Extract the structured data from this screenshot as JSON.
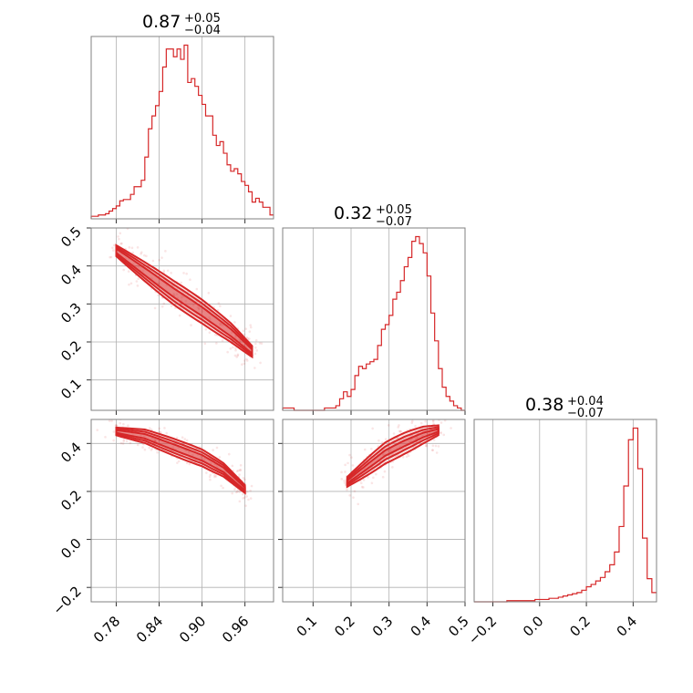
{
  "chart_data": {
    "type": "corner",
    "color": "#d62728",
    "parameters": [
      {
        "title": {
          "median": "0.87",
          "plus": "+0.05",
          "minus": "−0.04"
        },
        "range": [
          0.745,
          1.0
        ],
        "ticks": [
          "0.78",
          "0.84",
          "0.90",
          "0.96"
        ],
        "histogram": {
          "x": [
            0.745,
            0.75,
            0.755,
            0.76,
            0.765,
            0.77,
            0.775,
            0.78,
            0.785,
            0.79,
            0.795,
            0.8,
            0.805,
            0.81,
            0.815,
            0.82,
            0.825,
            0.83,
            0.835,
            0.84,
            0.845,
            0.85,
            0.855,
            0.86,
            0.865,
            0.87,
            0.875,
            0.88,
            0.885,
            0.89,
            0.895,
            0.9,
            0.905,
            0.91,
            0.915,
            0.92,
            0.925,
            0.93,
            0.935,
            0.94,
            0.945,
            0.95,
            0.955,
            0.96,
            0.965,
            0.97,
            0.975,
            0.98,
            0.985,
            0.99,
            0.995
          ],
          "counts": [
            2,
            2,
            3,
            3,
            4,
            6,
            8,
            10,
            14,
            15,
            15,
            19,
            25,
            25,
            30,
            48,
            70,
            80,
            88,
            99,
            118,
            132,
            132,
            126,
            132,
            124,
            135,
            106,
            109,
            103,
            96,
            89,
            80,
            80,
            65,
            57,
            60,
            51,
            42,
            37,
            39,
            35,
            29,
            26,
            21,
            13,
            16,
            13,
            9,
            9,
            3
          ]
        }
      },
      {
        "title": {
          "median": "0.32",
          "plus": "+0.05",
          "minus": "−0.07"
        },
        "range": [
          0.02,
          0.5
        ],
        "ticks": [
          "0.1",
          "0.2",
          "0.3",
          "0.4",
          "0.5"
        ],
        "histogram": {
          "x": [
            0.02,
            0.03,
            0.04,
            0.05,
            0.06,
            0.07,
            0.08,
            0.09,
            0.1,
            0.11,
            0.12,
            0.13,
            0.14,
            0.15,
            0.16,
            0.17,
            0.18,
            0.19,
            0.2,
            0.21,
            0.22,
            0.23,
            0.24,
            0.25,
            0.26,
            0.27,
            0.28,
            0.29,
            0.3,
            0.31,
            0.32,
            0.33,
            0.34,
            0.35,
            0.36,
            0.37,
            0.38,
            0.39,
            0.4,
            0.41,
            0.42,
            0.43,
            0.44,
            0.45,
            0.46,
            0.47,
            0.48,
            0.49
          ],
          "counts": [
            1,
            1,
            1,
            0,
            0,
            0,
            0,
            0,
            0,
            0,
            0,
            1,
            1,
            1,
            2,
            5,
            8,
            6,
            9,
            15,
            19,
            18,
            20,
            21,
            22,
            28,
            35,
            37,
            41,
            48,
            51,
            56,
            62,
            66,
            73,
            75,
            72,
            68,
            58,
            42,
            30,
            18,
            10,
            6,
            4,
            2,
            1,
            0
          ]
        }
      },
      {
        "title": {
          "median": "0.38",
          "plus": "+0.04",
          "minus": "−0.07"
        },
        "range": [
          -0.28,
          0.5
        ],
        "ticks": [
          "−0.2",
          "0.0",
          "0.2",
          "0.4"
        ],
        "histogram": {
          "x": [
            -0.28,
            -0.26,
            -0.24,
            -0.22,
            -0.2,
            -0.18,
            -0.16,
            -0.14,
            -0.12,
            -0.1,
            -0.08,
            -0.06,
            -0.04,
            -0.02,
            0.0,
            0.02,
            0.04,
            0.06,
            0.08,
            0.1,
            0.12,
            0.14,
            0.16,
            0.18,
            0.2,
            0.22,
            0.24,
            0.26,
            0.28,
            0.3,
            0.32,
            0.34,
            0.36,
            0.38,
            0.4,
            0.42,
            0.44,
            0.46,
            0.48
          ],
          "counts": [
            0,
            0,
            0,
            0,
            0,
            0,
            0,
            1,
            1,
            1,
            1,
            1,
            1,
            2,
            2,
            2,
            3,
            3,
            4,
            5,
            6,
            7,
            8,
            10,
            13,
            15,
            18,
            21,
            26,
            32,
            43,
            65,
            100,
            140,
            150,
            115,
            55,
            20,
            8
          ]
        }
      }
    ],
    "pairs": [
      {
        "x_param": 0,
        "y_param": 1,
        "y_range": [
          0.02,
          0.5
        ],
        "y_ticks": [
          "0.1",
          "0.2",
          "0.3",
          "0.4",
          "0.5"
        ],
        "centerline": [
          [
            0.78,
            0.44
          ],
          [
            0.82,
            0.385
          ],
          [
            0.86,
            0.33
          ],
          [
            0.9,
            0.28
          ],
          [
            0.94,
            0.225
          ],
          [
            0.97,
            0.175
          ]
        ],
        "widths": [
          0.012,
          0.022,
          0.032
        ],
        "spread_x": 0.055
      },
      {
        "x_param": 0,
        "y_param": 2,
        "y_range": [
          -0.26,
          0.5
        ],
        "y_ticks": [
          "−0.2",
          "0.0",
          "0.2",
          "0.4"
        ],
        "centerline": [
          [
            0.78,
            0.45
          ],
          [
            0.82,
            0.43
          ],
          [
            0.86,
            0.385
          ],
          [
            0.9,
            0.34
          ],
          [
            0.93,
            0.29
          ],
          [
            0.96,
            0.21
          ]
        ],
        "widths": [
          0.012,
          0.024,
          0.036
        ],
        "spread_x": 0.055
      },
      {
        "x_param": 1,
        "y_param": 2,
        "y_range": [
          -0.26,
          0.5
        ],
        "y_ticks": [
          "−0.2",
          "0.0",
          "0.2",
          "0.4"
        ],
        "centerline": [
          [
            0.19,
            0.24
          ],
          [
            0.24,
            0.3
          ],
          [
            0.29,
            0.36
          ],
          [
            0.34,
            0.4
          ],
          [
            0.39,
            0.435
          ],
          [
            0.43,
            0.455
          ]
        ],
        "widths": [
          0.012,
          0.028,
          0.045
        ],
        "spread_x": 0.08
      }
    ]
  }
}
